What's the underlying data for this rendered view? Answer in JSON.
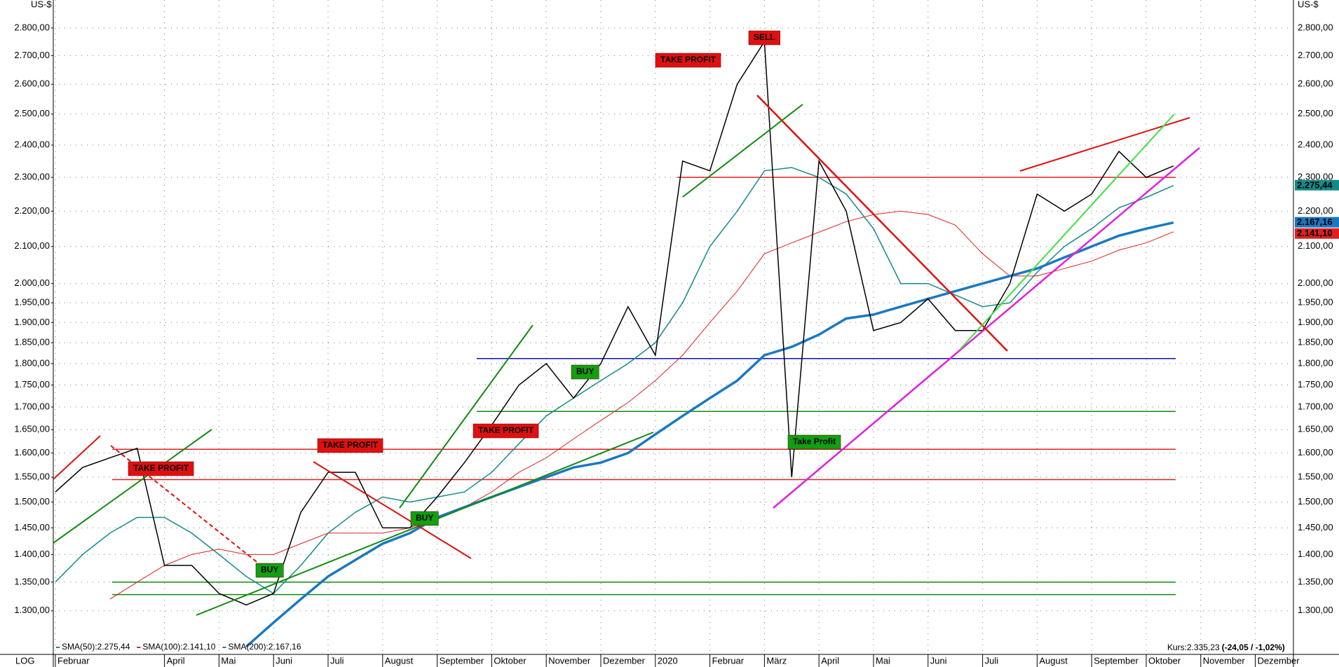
{
  "chart_data": {
    "type": "line",
    "axis_unit": "US-$",
    "scale_label": "LOG",
    "log_scale": true,
    "grid": true,
    "categories": [
      "Februar",
      null,
      null,
      null,
      "April",
      null,
      "Mai",
      null,
      "Juni",
      null,
      "Juli",
      null,
      "August",
      null,
      "September",
      null,
      "Oktober",
      null,
      "November",
      null,
      "Dezember",
      null,
      "2020",
      null,
      "Februar",
      null,
      "März",
      null,
      "April",
      null,
      "Mai",
      null,
      "Juni",
      null,
      "Juli",
      null,
      "August",
      null,
      "September",
      null,
      "Oktober",
      null,
      "November",
      null,
      "Dezember",
      null
    ],
    "values": [
      1520,
      1570,
      1590,
      1610,
      1380,
      1380,
      1330,
      1310,
      1330,
      1480,
      1560,
      1560,
      1450,
      1450,
      1510,
      1580,
      1660,
      1750,
      1800,
      1720,
      1800,
      1940,
      1820,
      2350,
      2320,
      2600,
      2750,
      1550,
      2350,
      2200,
      1880,
      1900,
      1960,
      1880,
      1880,
      2000,
      2250,
      2200,
      2250,
      2380,
      2300,
      2335,
      null,
      null,
      null,
      null
    ],
    "color": "#000000",
    "series": [
      {
        "name": "SMA(50):2.275,44",
        "color": "#138a8a",
        "values": [
          1350,
          1400,
          1440,
          1470,
          1470,
          1440,
          1400,
          1360,
          1330,
          1380,
          1440,
          1480,
          1510,
          1500,
          1510,
          1520,
          1560,
          1620,
          1680,
          1720,
          1760,
          1800,
          1850,
          1950,
          2100,
          2200,
          2320,
          2330,
          2300,
          2250,
          2150,
          2000,
          2000,
          1970,
          1940,
          1950,
          2030,
          2100,
          2150,
          2210,
          2240,
          2275.44,
          null,
          null,
          null,
          null
        ]
      },
      {
        "name": "SMA(100):2.141,10",
        "color": "#e02020",
        "values": [
          null,
          null,
          1320,
          1350,
          1380,
          1400,
          1410,
          1400,
          1400,
          1420,
          1440,
          1440,
          1440,
          1450,
          1470,
          1490,
          1520,
          1560,
          1590,
          1630,
          1670,
          1710,
          1760,
          1820,
          1900,
          1980,
          2080,
          2110,
          2140,
          2170,
          2190,
          2200,
          2190,
          2160,
          2080,
          2020,
          2020,
          2040,
          2060,
          2090,
          2110,
          2141.1,
          null,
          null,
          null,
          null
        ]
      },
      {
        "name": "SMA(200):2.167,16",
        "color": "#1a78c2",
        "values": [
          null,
          null,
          null,
          null,
          null,
          null,
          null,
          1240,
          1280,
          1320,
          1360,
          1390,
          1420,
          1440,
          1470,
          1490,
          1510,
          1530,
          1550,
          1570,
          1580,
          1600,
          1640,
          1680,
          1720,
          1760,
          1820,
          1840,
          1870,
          1910,
          1920,
          1940,
          1960,
          1980,
          2000,
          2020,
          2040,
          2070,
          2100,
          2130,
          2150,
          2167.16,
          null,
          null,
          null,
          null
        ]
      }
    ],
    "price_tags": [
      {
        "value": 2275.44,
        "label": "2.275,44",
        "color": "#138a8a"
      },
      {
        "value": 2167.16,
        "label": "2.167,16",
        "color": "#1a78c2"
      },
      {
        "value": 2141.1,
        "label": "2.141,10",
        "color": "#e02020"
      }
    ],
    "levels": [
      {
        "value": 2300,
        "color": "#e02020"
      },
      {
        "value": 1812,
        "color": "#1010b0"
      },
      {
        "value": 1690,
        "color": "#108a10"
      },
      {
        "value": 1608,
        "color": "#e02020"
      },
      {
        "value": 1545,
        "color": "#e02020"
      },
      {
        "value": 1350,
        "color": "#108a10"
      },
      {
        "value": 1328,
        "color": "#108a10"
      }
    ],
    "annotations": [
      {
        "text": "TAKE PROFIT",
        "color": "#e01010"
      },
      {
        "text": "TAKE PROFIT",
        "color": "#e01010"
      },
      {
        "text": "TAKE PROFIT",
        "color": "#e01010"
      },
      {
        "text": "TAKE PROFIT",
        "color": "#e01010"
      },
      {
        "text": "SELL",
        "color": "#e01010"
      },
      {
        "text": "BUY",
        "color": "#10a010"
      },
      {
        "text": "BUY",
        "color": "#10a010"
      },
      {
        "text": "BUY",
        "color": "#10a010"
      },
      {
        "text": "Take Profit",
        "color": "#10a010"
      }
    ],
    "quote": "Kurs:2.335,23",
    "quote_change": "(-24,05 / -1,02%)",
    "ylim": [
      1232,
      2905
    ],
    "yticks": [
      {
        "value": 1300,
        "label": "1.300,00"
      },
      {
        "value": 1350,
        "label": "1.350,00"
      },
      {
        "value": 1400,
        "label": "1.400,00"
      },
      {
        "value": 1450,
        "label": "1.450,00"
      },
      {
        "value": 1500,
        "label": "1.500,00"
      },
      {
        "value": 1550,
        "label": "1.550,00"
      },
      {
        "value": 1600,
        "label": "1.600,00"
      },
      {
        "value": 1650,
        "label": "1.650,00"
      },
      {
        "value": 1700,
        "label": "1.700,00"
      },
      {
        "value": 1750,
        "label": "1.750,00"
      },
      {
        "value": 1800,
        "label": "1.800,00"
      },
      {
        "value": 1850,
        "label": "1.850,00"
      },
      {
        "value": 1900,
        "label": "1.900,00"
      },
      {
        "value": 1950,
        "label": "1.950,00"
      },
      {
        "value": 2000,
        "label": "2.000,00"
      },
      {
        "value": 2100,
        "label": "2.100,00"
      },
      {
        "value": 2200,
        "label": "2.200,00"
      },
      {
        "value": 2300,
        "label": "2.300,00"
      },
      {
        "value": 2400,
        "label": "2.400,00"
      },
      {
        "value": 2500,
        "label": "2.500,00"
      },
      {
        "value": 2600,
        "label": "2.600,00"
      },
      {
        "value": 2700,
        "label": "2.700,00"
      },
      {
        "value": 2800,
        "label": "2.800,00"
      }
    ]
  }
}
